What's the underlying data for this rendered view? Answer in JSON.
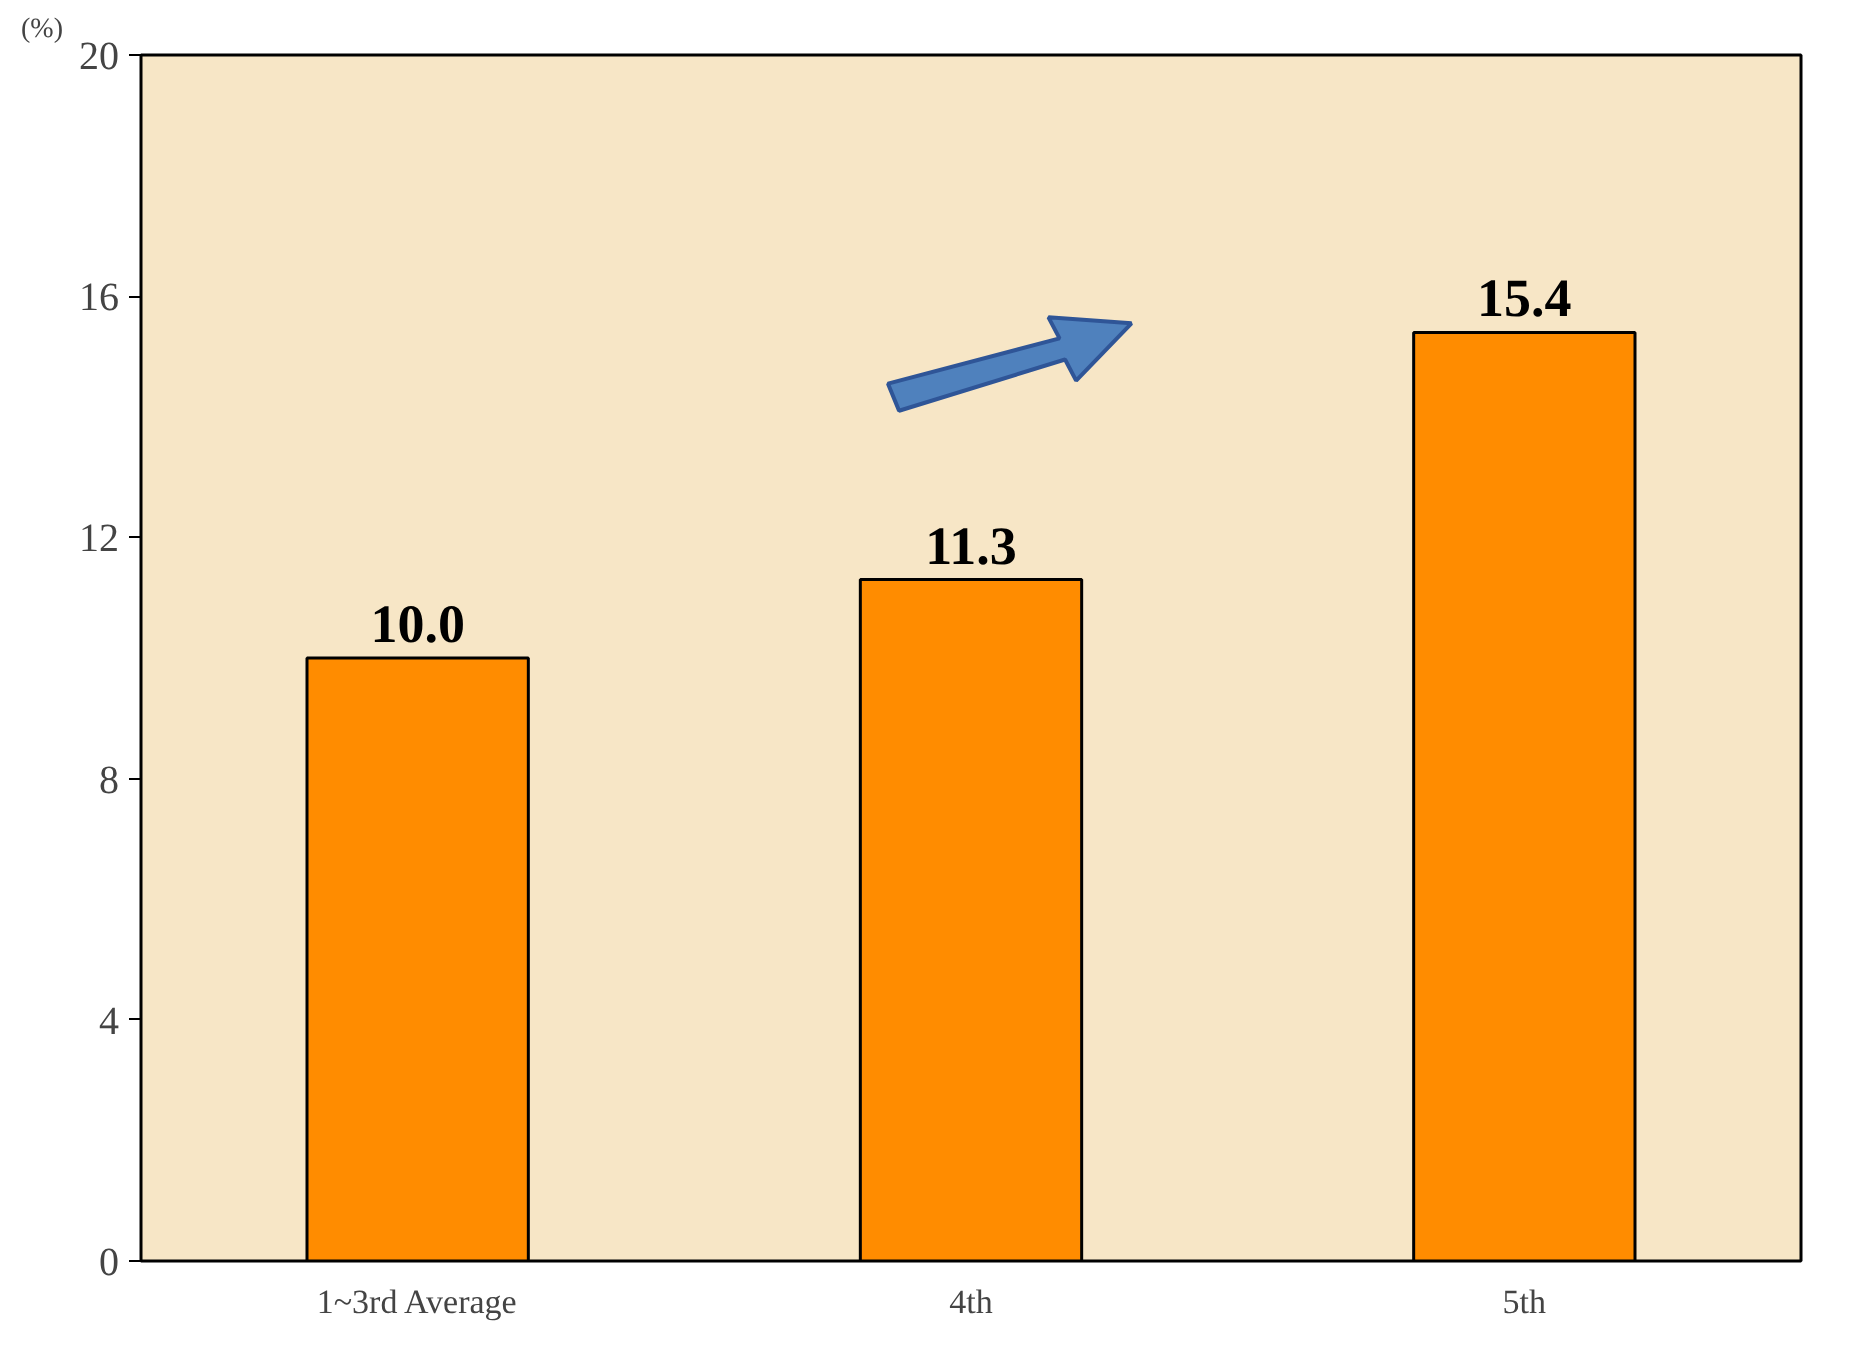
{
  "chart_data": {
    "type": "bar",
    "ylabel": "(%)",
    "categories": [
      "1~3rd Average",
      "4th",
      "5th"
    ],
    "values": [
      10.0,
      11.3,
      15.4
    ],
    "color": "#ff8c00",
    "ylim": [
      0,
      20
    ],
    "yticks": [
      0,
      4,
      8,
      12,
      16,
      20
    ],
    "value_labels": [
      "10.0",
      "11.3",
      "15.4"
    ],
    "grid": false
  }
}
